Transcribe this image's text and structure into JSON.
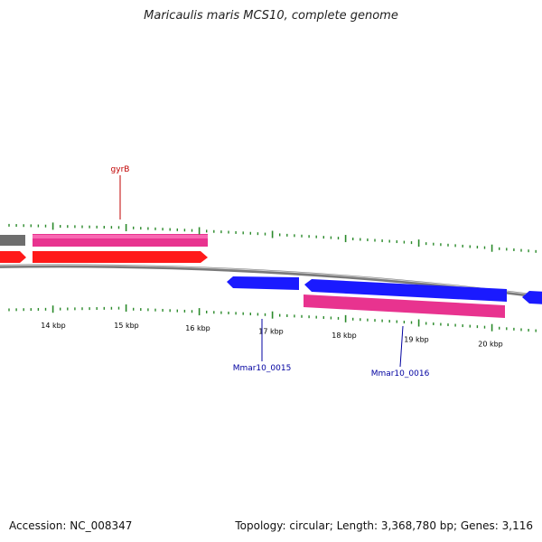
{
  "title": "Maricaulis maris MCS10, complete genome",
  "footer": {
    "accession": "Accession: NC_008347",
    "summary": "Topology: circular; Length: 3,368,780 bp; Genes: 3,116"
  },
  "colors": {
    "backbone": "#7a7a7a",
    "cds_forward": "#ff1a1a",
    "cds_reverse": "#1a1aff",
    "gene_forward": "#e8338f",
    "gene_reverse": "#e8338f",
    "gene_gray": "#6e6e6e",
    "tick": "#2a8a2a",
    "label_forward": "#c00000",
    "label_reverse": "#0000a0",
    "tick_label": "#000000"
  },
  "ticks": {
    "labels": [
      "14 kbp",
      "15 kbp",
      "16 kbp",
      "17 kbp",
      "18 kbp",
      "19 kbp",
      "20 kbp"
    ]
  },
  "genes": [
    {
      "name": "gyrB"
    },
    {
      "name": "Mmar10_0015"
    },
    {
      "name": "Mmar10_0016"
    }
  ]
}
